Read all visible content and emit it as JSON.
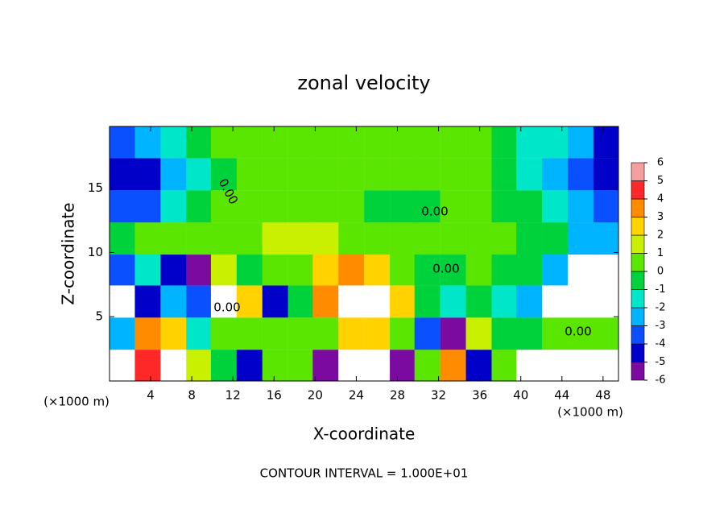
{
  "chart_data": {
    "type": "contour",
    "title": "zonal velocity",
    "x_label": "X-coordinate",
    "y_label": "Z-coordinate",
    "x_unit_labels": [
      "(×1000 m)",
      "(×1000 m)"
    ],
    "footer": "CONTOUR INTERVAL = 1.000E+01",
    "contour_labels": [
      "0.00",
      "0.00",
      "0.00",
      "0.00",
      "0.00"
    ],
    "xlim": [
      0,
      49.5
    ],
    "ylim": [
      0,
      19.8
    ],
    "xticks": [
      4,
      8,
      12,
      16,
      20,
      24,
      28,
      32,
      36,
      40,
      44,
      48
    ],
    "yticks": [
      5,
      10,
      15
    ],
    "x": [
      1.2,
      3.7,
      6.2,
      8.7,
      11.1,
      13.6,
      16.1,
      18.6,
      21,
      23.5,
      26,
      28.5,
      30.9,
      33.4,
      35.9,
      38.4,
      40.8,
      43.3,
      45.8,
      48.3
    ],
    "y": [
      1.2,
      3.7,
      6.2,
      8.7,
      11.1,
      13.6,
      16.1,
      18.6
    ],
    "z": [
      [
        8,
        5,
        7,
        2,
        0,
        -4,
        1,
        0.5,
        -5,
        -7,
        -7,
        -5,
        1,
        4,
        -4,
        1,
        7,
        8,
        8,
        7
      ],
      [
        -2,
        4,
        3,
        -1,
        0.5,
        0.5,
        0.5,
        0.5,
        1,
        3,
        3,
        1,
        -3,
        -5,
        2,
        0,
        0,
        0.5,
        1,
        1
      ],
      [
        -8,
        -4,
        -2,
        -3,
        7,
        3,
        -4,
        0,
        4,
        8,
        8,
        3,
        0,
        -1,
        0,
        -1,
        -2,
        7,
        8,
        8
      ],
      [
        -3,
        -1,
        -4,
        -5,
        2,
        0,
        0.5,
        0.5,
        3,
        4,
        3,
        1,
        0,
        0,
        0.5,
        0,
        0,
        -2,
        7,
        8
      ],
      [
        0,
        0.5,
        1,
        1,
        1,
        1,
        1.5,
        1.5,
        1.5,
        1,
        0.5,
        1,
        1,
        0.5,
        0.5,
        0.5,
        0,
        -0.5,
        -2,
        -2
      ],
      [
        -3,
        -3,
        -1,
        0,
        0.5,
        0.5,
        1,
        1,
        1,
        0.5,
        0,
        -0.5,
        0,
        0.5,
        0.5,
        0,
        -0.5,
        -1,
        -2,
        -3
      ],
      [
        -4,
        -4,
        -2,
        -1,
        0,
        0.5,
        1,
        1,
        1,
        1,
        1,
        0.5,
        0.5,
        0.5,
        0.5,
        0,
        -1,
        -2,
        -3,
        -4
      ],
      [
        -3,
        -2,
        -1,
        0,
        0.5,
        0.5,
        1,
        1,
        1,
        1,
        1,
        0.5,
        0.5,
        0.5,
        0.5,
        0,
        -1,
        -1,
        -2,
        -4
      ]
    ],
    "levels": [
      -6,
      -5,
      -4,
      -3,
      -2,
      -1,
      0,
      1,
      2,
      3,
      4,
      5,
      6
    ],
    "colors": [
      "#7a0aa0",
      "#0000c8",
      "#0a50ff",
      "#00b4ff",
      "#00e6c8",
      "#00d23c",
      "#5ae600",
      "#c8f000",
      "#ffd200",
      "#ff8c00",
      "#ff2828",
      "#f5a0a0"
    ],
    "out_of_range_color": "#ffffff"
  }
}
